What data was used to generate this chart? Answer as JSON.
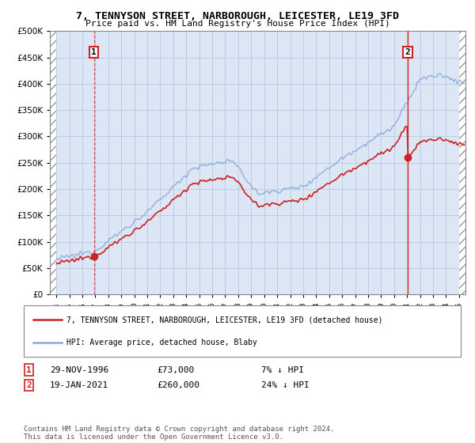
{
  "title": "7, TENNYSON STREET, NARBOROUGH, LEICESTER, LE19 3FD",
  "subtitle": "Price paid vs. HM Land Registry's House Price Index (HPI)",
  "legend_line1": "7, TENNYSON STREET, NARBOROUGH, LEICESTER, LE19 3FD (detached house)",
  "legend_line2": "HPI: Average price, detached house, Blaby",
  "annotation1_label": "1",
  "annotation1_date": "29-NOV-1996",
  "annotation1_price": "£73,000",
  "annotation1_hpi": "7% ↓ HPI",
  "annotation2_label": "2",
  "annotation2_date": "19-JAN-2021",
  "annotation2_price": "£260,000",
  "annotation2_hpi": "24% ↓ HPI",
  "footnote": "Contains HM Land Registry data © Crown copyright and database right 2024.\nThis data is licensed under the Open Government Licence v3.0.",
  "sale1_year": 1996.9,
  "sale1_y": 73000,
  "sale2_year": 2021.05,
  "sale2_y": 260000,
  "ylim": [
    0,
    500000
  ],
  "xlim": [
    1993.5,
    2025.5
  ],
  "hpi_color": "#88aadd",
  "price_color": "#cc2222",
  "plot_bg": "#dce6f5",
  "hatch_color": "#c0c0c0",
  "grid_color": "#b8c8e0"
}
